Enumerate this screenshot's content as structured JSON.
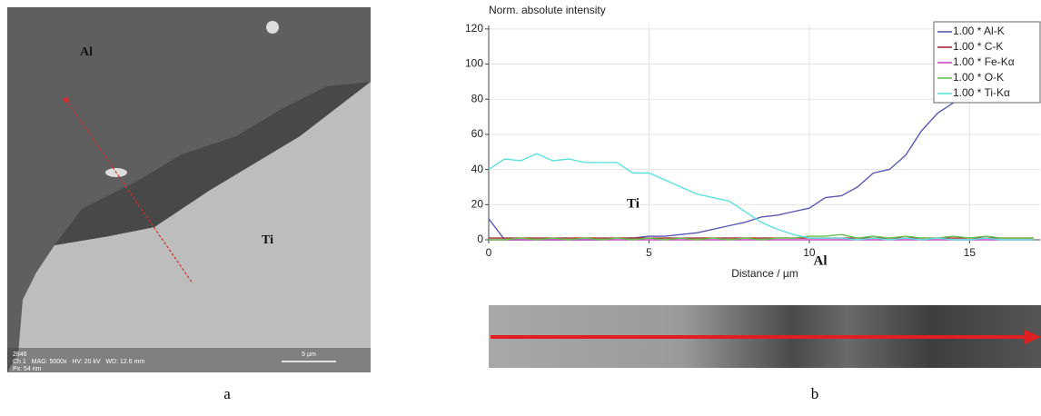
{
  "image_panel": {
    "labels": [
      "Al",
      "Ti"
    ],
    "info": [
      "2846",
      "Ch 1   MAG: 5000x   HV: 20 kV   WD: 12.6 mm",
      "Px: 54 nm"
    ],
    "scale_label": "5 µm",
    "caption": "a"
  },
  "chart_data": {
    "type": "line",
    "title": "Norm. absolute intensity",
    "x_label": "Distance / µm",
    "caption": "b",
    "annotations": [
      "Ti",
      "Al"
    ],
    "xlim": [
      0,
      17.2
    ],
    "xticks": [
      0,
      5,
      10,
      15
    ],
    "ylim": [
      0,
      122
    ],
    "yticks": [
      0,
      20,
      40,
      60,
      80,
      100,
      120
    ],
    "grid": true,
    "x": [
      0,
      0.5,
      1,
      1.5,
      2,
      2.5,
      3,
      3.5,
      4,
      4.5,
      5,
      5.5,
      6,
      6.5,
      7,
      7.5,
      8,
      8.5,
      9,
      9.5,
      10,
      10.5,
      11,
      11.5,
      12,
      12.5,
      13,
      13.5,
      14,
      14.5,
      15,
      15.5,
      16,
      16.5,
      17
    ],
    "series": [
      {
        "name": "1.00 * Al-K",
        "color": "#5a5ab4",
        "values": [
          12,
          0,
          0,
          0,
          0,
          0,
          0,
          0,
          1,
          1,
          2,
          2,
          3,
          4,
          6,
          8,
          10,
          13,
          14,
          16,
          18,
          24,
          25,
          30,
          38,
          40,
          48,
          62,
          72,
          78,
          88,
          90,
          88,
          90,
          92
        ]
      },
      {
        "name": "1.00 * C-K",
        "color": "#9b2a2a",
        "values": [
          1,
          1,
          1,
          1,
          1,
          1,
          1,
          1,
          1,
          1,
          1,
          1,
          1,
          1,
          1,
          1,
          1,
          1,
          1,
          1,
          1,
          1,
          1,
          1,
          1,
          1,
          1,
          1,
          1,
          1,
          1,
          1,
          1,
          1,
          1
        ]
      },
      {
        "name": "1.00 * Fe-Kα",
        "color": "#c846c8",
        "values": [
          0,
          0,
          0,
          0,
          0,
          0,
          0,
          0,
          0,
          0,
          0,
          0,
          0,
          0,
          0,
          0,
          0,
          0,
          0,
          0,
          0,
          0,
          0,
          0,
          0,
          0,
          0,
          0,
          0,
          0,
          0,
          0,
          0,
          0,
          0
        ]
      },
      {
        "name": "1.00 * O-K",
        "color": "#66c24a",
        "values": [
          0,
          0,
          1,
          0,
          1,
          0,
          1,
          0,
          1,
          0,
          1,
          0,
          1,
          0,
          1,
          0,
          1,
          0,
          1,
          1,
          2,
          2,
          3,
          1,
          2,
          1,
          2,
          1,
          1,
          2,
          1,
          2,
          1,
          1,
          1
        ]
      },
      {
        "name": "1.00 * Ti-Kα",
        "color": "#5fe0e0",
        "values": [
          40,
          46,
          45,
          49,
          45,
          46,
          44,
          44,
          44,
          38,
          38,
          34,
          30,
          26,
          24,
          22,
          16,
          10,
          6,
          3,
          1,
          1,
          1,
          0,
          1,
          0,
          1,
          0,
          1,
          0,
          0,
          1,
          0,
          0,
          0
        ]
      }
    ]
  }
}
